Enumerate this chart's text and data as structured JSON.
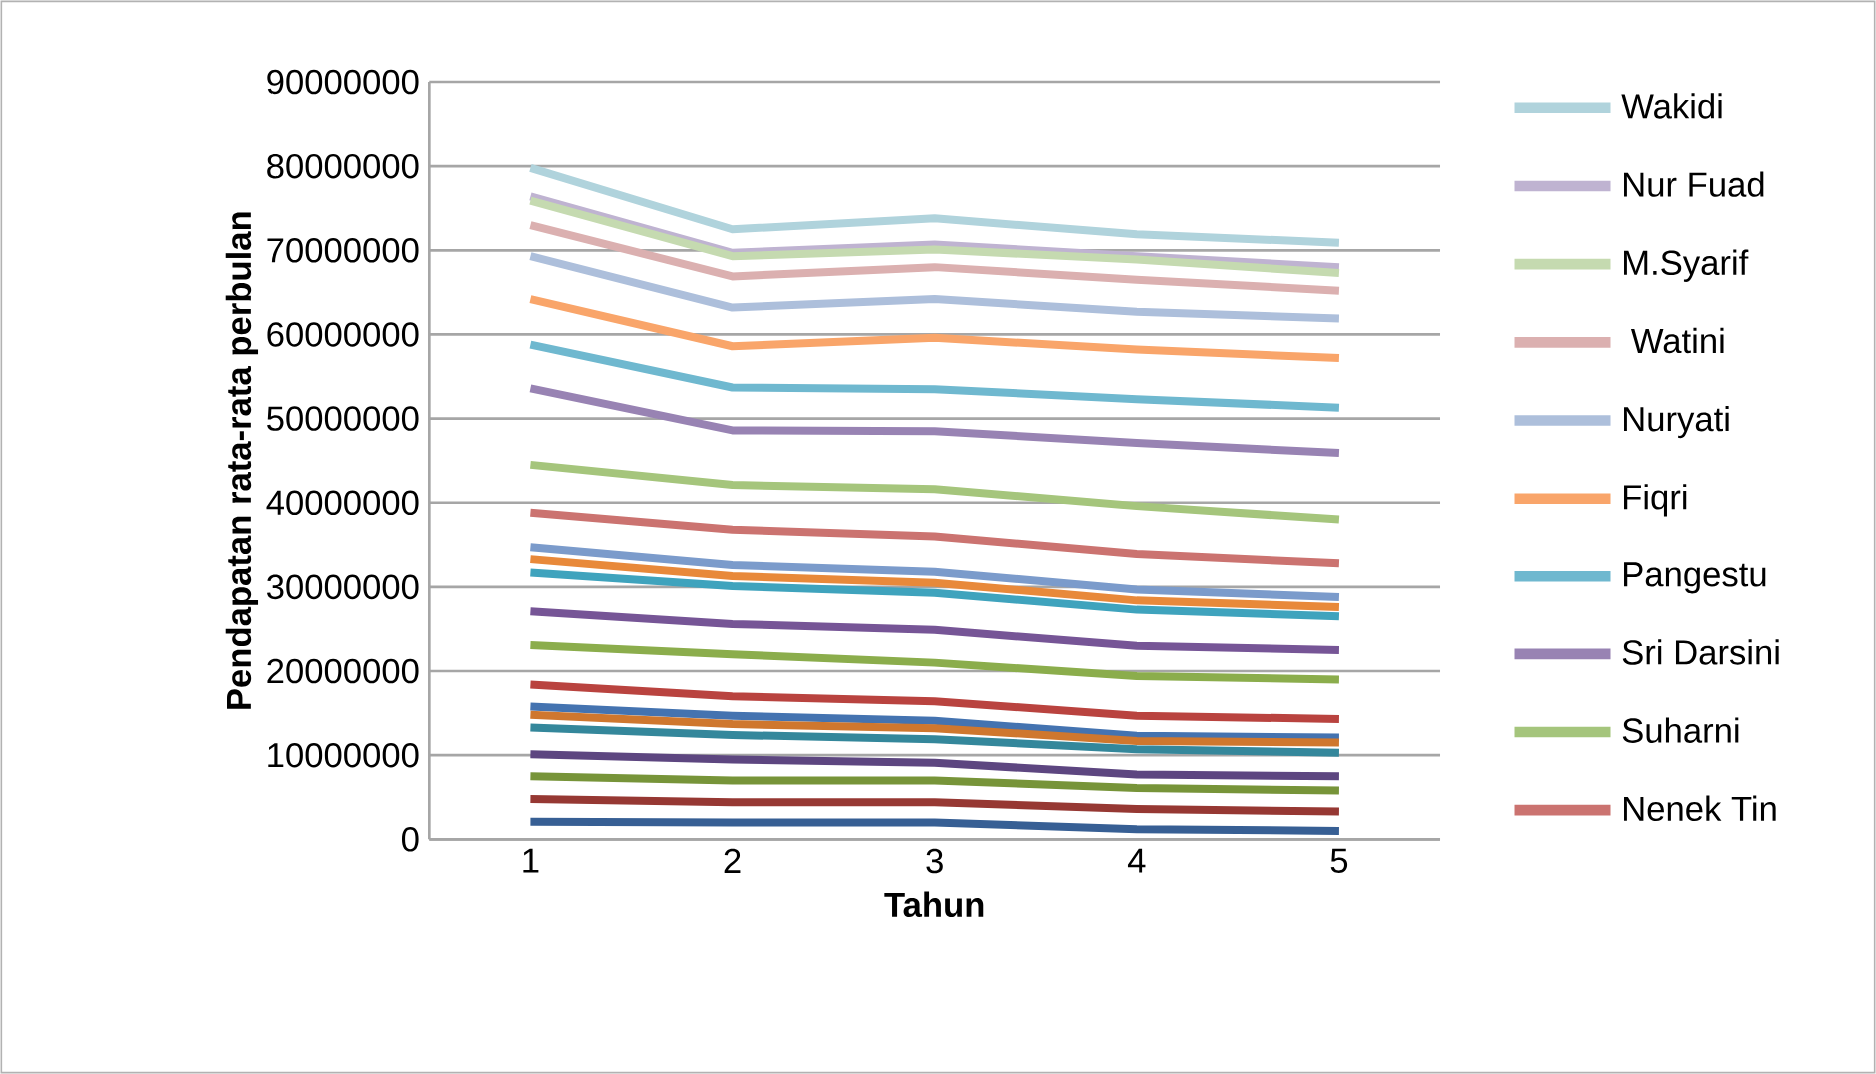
{
  "chart_data": {
    "type": "line",
    "xlabel": "Tahun",
    "ylabel": "Pendapatan rata-rata perbulan",
    "categories": [
      "1",
      "2",
      "3",
      "4",
      "5"
    ],
    "ylim": [
      0,
      90000000
    ],
    "yticks": [
      0,
      10000000,
      20000000,
      30000000,
      40000000,
      50000000,
      60000000,
      70000000,
      80000000,
      90000000
    ],
    "grid": "y",
    "legend": "right",
    "line_style": "solid",
    "series": [
      {
        "name": "Wakidi",
        "color": "#b0d3dc",
        "values": [
          79800000,
          72500000,
          73800000,
          71900000,
          70900000
        ]
      },
      {
        "name": "Nur Fuad",
        "color": "#bfb3d1",
        "values": [
          76400000,
          69700000,
          70700000,
          69300000,
          68000000
        ]
      },
      {
        "name": "M.Syarif",
        "color": "#c5dab0",
        "values": [
          75900000,
          69300000,
          70100000,
          68900000,
          67300000
        ]
      },
      {
        "name": " Watini",
        "color": "#dbb0b0",
        "values": [
          73000000,
          66900000,
          68000000,
          66500000,
          65200000
        ]
      },
      {
        "name": "Nuryati",
        "color": "#adbfdb",
        "values": [
          69300000,
          63200000,
          64200000,
          62700000,
          61900000
        ]
      },
      {
        "name": "Fiqri",
        "color": "#f9a56a",
        "values": [
          64200000,
          58600000,
          59600000,
          58200000,
          57200000
        ]
      },
      {
        "name": "Pangestu",
        "color": "#6fb8cf",
        "values": [
          58800000,
          53700000,
          53500000,
          52300000,
          51300000
        ]
      },
      {
        "name": "Sri Darsini",
        "color": "#9883b3",
        "values": [
          53600000,
          48600000,
          48500000,
          47100000,
          45900000
        ]
      },
      {
        "name": "Suharni",
        "color": "#a5c57c",
        "values": [
          44500000,
          42100000,
          41600000,
          39600000,
          38000000
        ]
      },
      {
        "name": "Nenek Tin",
        "color": "#cb7370",
        "values": [
          38800000,
          36800000,
          36000000,
          33900000,
          32800000
        ]
      },
      {
        "color": "#7b9bcb",
        "values": [
          34700000,
          32600000,
          31800000,
          29700000,
          28800000
        ]
      },
      {
        "color": "#e8893a",
        "values": [
          33300000,
          31300000,
          30500000,
          28400000,
          27600000
        ]
      },
      {
        "color": "#3fa3bd",
        "values": [
          31700000,
          30100000,
          29300000,
          27300000,
          26500000
        ]
      },
      {
        "color": "#765596",
        "values": [
          27100000,
          25600000,
          24900000,
          23000000,
          22500000
        ]
      },
      {
        "color": "#8bad4c",
        "values": [
          23100000,
          22000000,
          21000000,
          19400000,
          19000000
        ]
      },
      {
        "color": "#b9433f",
        "values": [
          18400000,
          17000000,
          16400000,
          14700000,
          14300000
        ]
      },
      {
        "color": "#4473b0",
        "values": [
          15800000,
          14700000,
          14100000,
          12300000,
          12100000
        ]
      },
      {
        "color": "#cf772e",
        "values": [
          14800000,
          13700000,
          13200000,
          11700000,
          11500000
        ]
      },
      {
        "color": "#34879b",
        "values": [
          13300000,
          12400000,
          11900000,
          10700000,
          10300000
        ]
      },
      {
        "color": "#5d4680",
        "values": [
          10100000,
          9500000,
          9100000,
          7700000,
          7500000
        ]
      },
      {
        "color": "#779439",
        "values": [
          7500000,
          7000000,
          7000000,
          6100000,
          5800000
        ]
      },
      {
        "color": "#963833",
        "values": [
          4800000,
          4400000,
          4400000,
          3600000,
          3300000
        ]
      },
      {
        "color": "#375f94",
        "values": [
          2100000,
          2000000,
          2000000,
          1200000,
          1000000
        ]
      }
    ]
  }
}
